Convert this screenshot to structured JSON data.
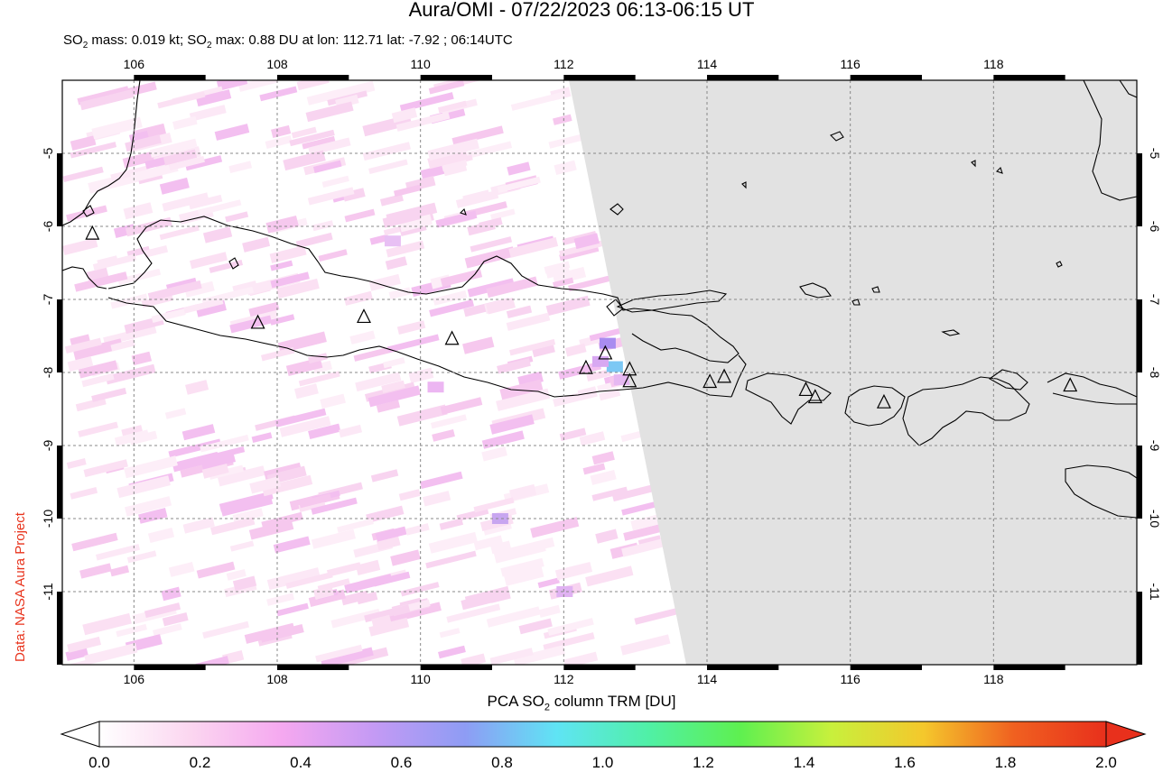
{
  "title": "Aura/OMI - 07/22/2023 06:13-06:15 UT",
  "subtitle_pre": "SO",
  "subtitle_sub": "2",
  "subtitle_mid": " mass: 0.019 kt; SO",
  "subtitle_sub2": "2",
  "subtitle_post": " max: 0.88 DU at lon: 112.71 lat: -7.92 ; 06:14UTC",
  "credit": "Data: NASA Aura Project",
  "map": {
    "lon_range": [
      105.0,
      120.0
    ],
    "lat_range": [
      -12.0,
      -4.0
    ],
    "lon_ticks": [
      "106",
      "108",
      "110",
      "112",
      "114",
      "116",
      "118"
    ],
    "lat_ticks": [
      "-5",
      "-6",
      "-7",
      "-8",
      "-9",
      "-10",
      "-11"
    ],
    "no_data_color": "#e2e2e2",
    "grid": "dashed",
    "volcanoes": [
      {
        "lon": 105.42,
        "lat": -6.1
      },
      {
        "lon": 107.73,
        "lat": -7.32
      },
      {
        "lon": 109.21,
        "lat": -7.24
      },
      {
        "lon": 110.44,
        "lat": -7.54
      },
      {
        "lon": 112.31,
        "lat": -7.94
      },
      {
        "lon": 112.58,
        "lat": -7.74
      },
      {
        "lon": 112.92,
        "lat": -7.96
      },
      {
        "lon": 112.92,
        "lat": -8.12
      },
      {
        "lon": 114.04,
        "lat": -8.13
      },
      {
        "lon": 114.24,
        "lat": -8.06
      },
      {
        "lon": 115.38,
        "lat": -8.24
      },
      {
        "lon": 115.51,
        "lat": -8.34
      },
      {
        "lon": 116.47,
        "lat": -8.41
      },
      {
        "lon": 119.07,
        "lat": -8.18
      }
    ],
    "so2_max_pixel": {
      "lon": 112.71,
      "lat": -7.92,
      "value_du": 0.88
    }
  },
  "colorbar": {
    "title_pre": "PCA SO",
    "title_sub": "2",
    "title_post": " column TRM [DU]",
    "ticks": [
      "0.0",
      "0.2",
      "0.4",
      "0.6",
      "0.8",
      "1.0",
      "1.2",
      "1.4",
      "1.6",
      "1.8",
      "2.0"
    ],
    "colors": [
      "#ffffff",
      "#fbd6f0",
      "#f5a8f0",
      "#c49af4",
      "#8e9cf4",
      "#5fe4f4",
      "#50f0a6",
      "#5ef050",
      "#c8f03c",
      "#f4c82c",
      "#f06020",
      "#e8301c"
    ]
  }
}
